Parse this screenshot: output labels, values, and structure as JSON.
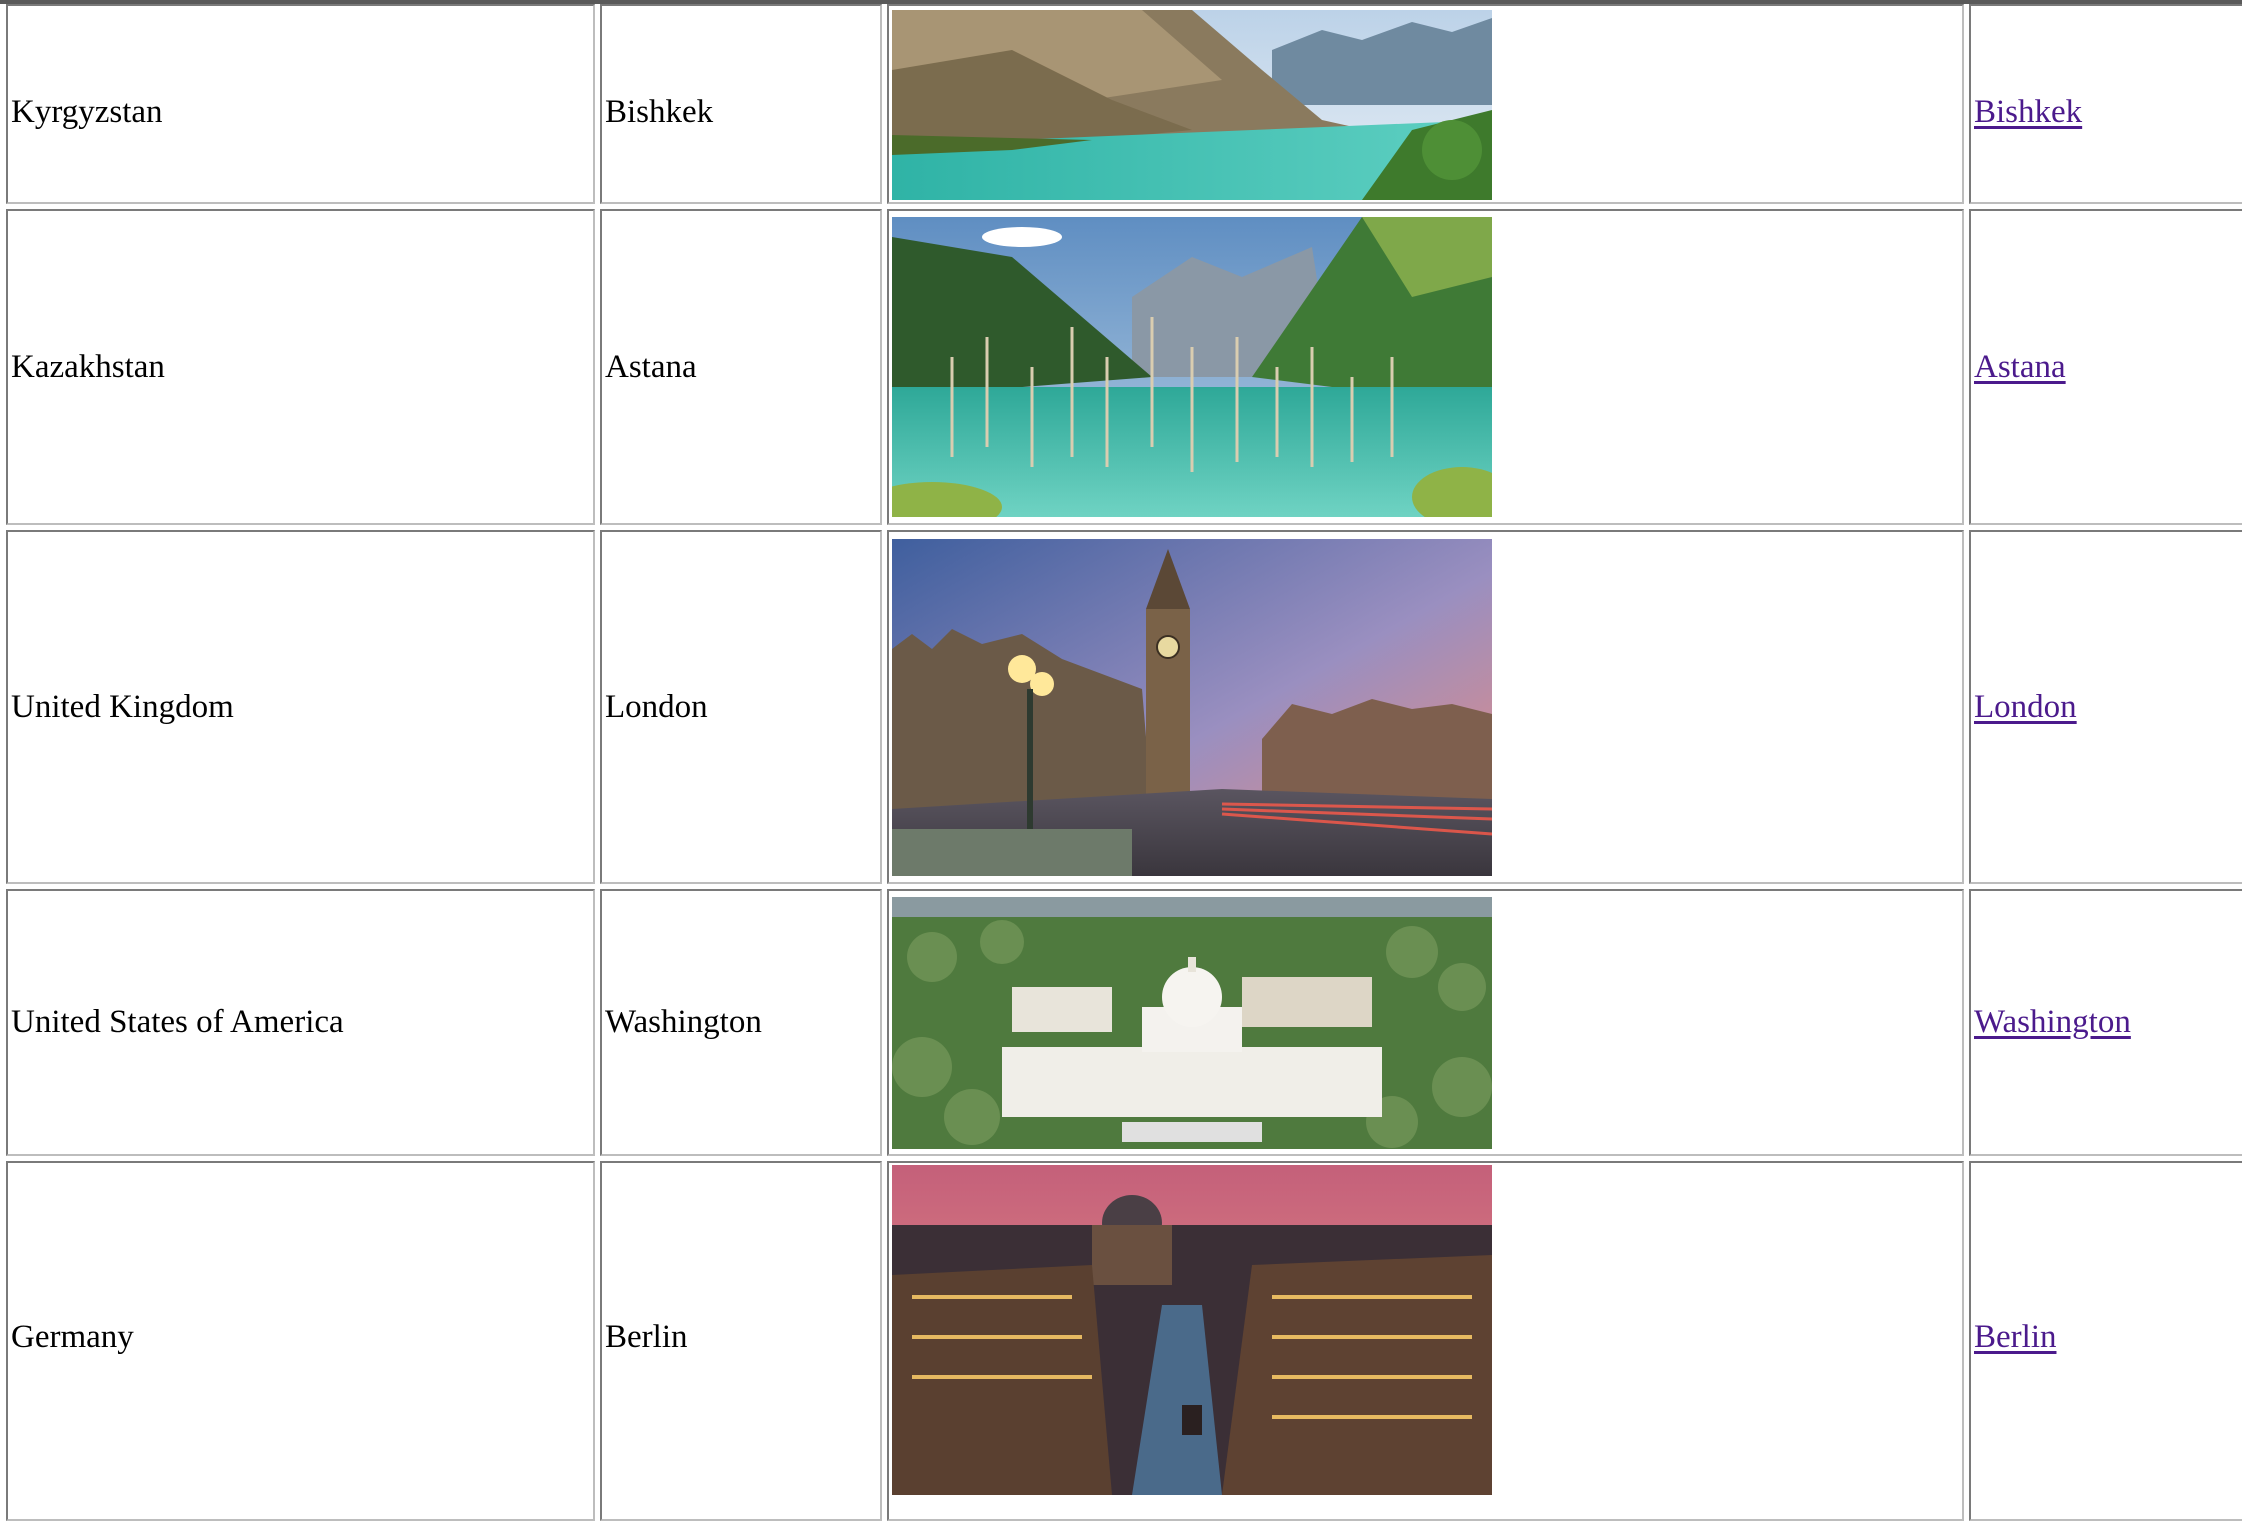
{
  "rows": [
    {
      "country": "Kyrgyzstan",
      "capital": "Bishkek",
      "link": "Bishkek",
      "photo": "mountain-lake-photo"
    },
    {
      "country": "Kazakhstan",
      "capital": "Astana",
      "link": "Astana",
      "photo": "kaindy-lake-photo"
    },
    {
      "country": "United Kingdom",
      "capital": "London",
      "link": "London",
      "photo": "big-ben-photo"
    },
    {
      "country": "United States of America",
      "capital": "Washington",
      "link": "Washington",
      "photo": "capitol-photo"
    },
    {
      "country": "Germany",
      "capital": "Berlin",
      "link": "Berlin",
      "photo": "berlin-cathedral-photo"
    }
  ],
  "colors": {
    "link": "#4b1a8c",
    "border_dark": "#7a7a7a",
    "border_light": "#bdbdbd"
  }
}
